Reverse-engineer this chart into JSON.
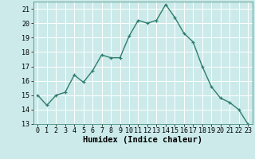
{
  "x": [
    0,
    1,
    2,
    3,
    4,
    5,
    6,
    7,
    8,
    9,
    10,
    11,
    12,
    13,
    14,
    15,
    16,
    17,
    18,
    19,
    20,
    21,
    22,
    23
  ],
  "y": [
    15,
    14.3,
    15,
    15.2,
    16.4,
    15.9,
    16.7,
    17.8,
    17.6,
    17.6,
    19.1,
    20.2,
    20.0,
    20.2,
    21.3,
    20.4,
    19.3,
    18.7,
    17.0,
    15.6,
    14.8,
    14.5,
    14.0,
    13.0
  ],
  "line_color": "#2e7d6e",
  "marker": "+",
  "marker_size": 3.5,
  "bg_color": "#cceaea",
  "grid_color": "#ffffff",
  "xlabel": "Humidex (Indice chaleur)",
  "ylim": [
    13,
    21.5
  ],
  "xlim": [
    -0.5,
    23.5
  ],
  "yticks": [
    13,
    14,
    15,
    16,
    17,
    18,
    19,
    20,
    21
  ],
  "xticks": [
    0,
    1,
    2,
    3,
    4,
    5,
    6,
    7,
    8,
    9,
    10,
    11,
    12,
    13,
    14,
    15,
    16,
    17,
    18,
    19,
    20,
    21,
    22,
    23
  ],
  "tick_fontsize": 6.0,
  "xlabel_fontsize": 7.5,
  "line_width": 1.0,
  "marker_edge_width": 0.9
}
